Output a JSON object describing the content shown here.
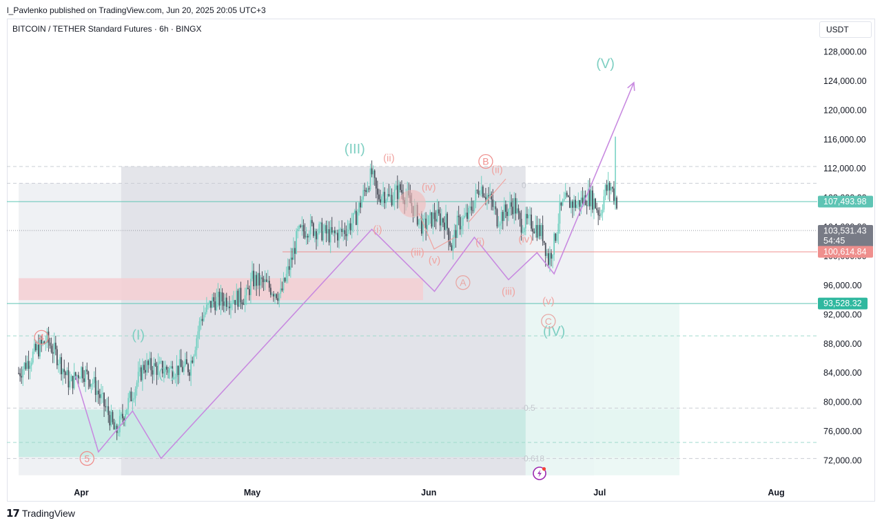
{
  "header": {
    "publish_line": "l_Pavlenko published on TradingView.com, Jun 20, 2025 20:05 UTC+3"
  },
  "chart_header": {
    "symbol": "BITCOIN / TETHER Standard Futures · 6h · BINGX",
    "currency": "USDT"
  },
  "footer": {
    "brand": "TradingView"
  },
  "colors": {
    "up": "#26a69a",
    "down": "#ef5350",
    "candles": "#6fd0c0",
    "wave_main": "#7ecfc2",
    "wave_sub": "#f0a3a0",
    "projection": "#c88ae0",
    "last_price_bg": "#5ec4b4",
    "pivot_bg": "#ef8f8d",
    "countdown_bg": "#787b86",
    "support_bg": "#2fb89f"
  },
  "chart_data": {
    "type": "candlestick",
    "x_axis": {
      "tick_labels": [
        "Apr",
        "May",
        "Jun",
        "Jul",
        "Aug"
      ]
    },
    "y_axis": {
      "range": [
        70000,
        131000
      ],
      "tick_labels": [
        "128,000.00",
        "124,000.00",
        "120,000.00",
        "116,000.00",
        "112,000.00",
        "108,000.00",
        "104,000.00",
        "100,000.00",
        "96,000.00",
        "92,000.00",
        "88,000.00",
        "84,000.00",
        "80,000.00",
        "76,000.00",
        "72,000.00"
      ],
      "tick_values": [
        128000,
        124000,
        120000,
        116000,
        112000,
        108000,
        104000,
        100000,
        96000,
        92000,
        88000,
        84000,
        80000,
        76000,
        72000
      ]
    },
    "price_labels": [
      {
        "name": "last-price",
        "value": 107493.98,
        "text": "107,493.98",
        "style": "last"
      },
      {
        "name": "current-price",
        "value": 103531.43,
        "text": "103,531.43",
        "sub": "54:45",
        "style": "countdown"
      },
      {
        "name": "pivot-line",
        "value": 100614.84,
        "text": "100,614.84",
        "style": "pivot"
      },
      {
        "name": "support-line",
        "value": 93528.32,
        "text": "93,528.32",
        "style": "support"
      }
    ],
    "fib_labels": [
      {
        "text": "0.5",
        "price": 79200
      },
      {
        "text": "0.618",
        "price": 72300
      },
      {
        "text": "0",
        "price": 109700
      }
    ],
    "zones": [
      {
        "name": "upper-gray-box",
        "x": [
          "2025-03-21",
          "2025-06-30"
        ],
        "price": [
          110000,
          70000
        ],
        "color": "#eceef2"
      },
      {
        "name": "darker-gray-box",
        "x": [
          "2025-04-08",
          "2025-06-18"
        ],
        "price": [
          112300,
          70000
        ],
        "color": "#dfe1e6"
      },
      {
        "name": "supply-zone",
        "x": [
          "2025-03-21",
          "2025-05-31"
        ],
        "price": [
          97000,
          94000
        ],
        "color": "#f5cfd2"
      },
      {
        "name": "teal-demand-zone",
        "x": [
          "2025-03-21",
          "2025-07-15"
        ],
        "price": [
          79000,
          72500
        ],
        "color": "#c4ebe3"
      },
      {
        "name": "light-teal-zone",
        "x": [
          "2025-06-18",
          "2025-07-15"
        ],
        "price": [
          93528,
          70000
        ],
        "color": "#e9f7f3"
      }
    ],
    "wave_labels": [
      {
        "text": "(III)",
        "date": "2025-05-19",
        "price": 114100,
        "style": "main"
      },
      {
        "text": "(I)",
        "date": "2025-04-11",
        "price": 88600,
        "style": "main"
      },
      {
        "text": "(II)",
        "date": "2025-04-16",
        "price": 83300,
        "style": "main"
      },
      {
        "text": "(IV)",
        "date": "2025-06-23",
        "price": 89100,
        "style": "main"
      },
      {
        "text": "(V)",
        "date": "2025-07-02",
        "price": 125800,
        "style": "main"
      },
      {
        "text": "(ii)",
        "date": "2025-05-25",
        "price": 113000,
        "style": "sub"
      },
      {
        "text": "(i)",
        "date": "2025-05-23",
        "price": 103200,
        "style": "sub"
      },
      {
        "text": "(iv)",
        "date": "2025-06-01",
        "price": 109000,
        "style": "sub"
      },
      {
        "text": "(iii)",
        "date": "2025-05-30",
        "price": 100100,
        "style": "sub"
      },
      {
        "text": "(v)",
        "date": "2025-06-02",
        "price": 99000,
        "style": "sub"
      },
      {
        "text": "(ii)",
        "date": "2025-06-13",
        "price": 111400,
        "style": "sub"
      },
      {
        "text": "(i)",
        "date": "2025-06-10",
        "price": 101500,
        "style": "sub"
      },
      {
        "text": "(iv)",
        "date": "2025-06-18",
        "price": 101900,
        "style": "sub"
      },
      {
        "text": "(iii)",
        "date": "2025-06-15",
        "price": 94700,
        "style": "sub"
      },
      {
        "text": "(v)",
        "date": "2025-06-22",
        "price": 93400,
        "style": "sub"
      }
    ],
    "circled_labels": [
      {
        "text": "4",
        "date": "2025-03-25",
        "price": 88900
      },
      {
        "text": "5",
        "date": "2025-04-02",
        "price": 72300
      },
      {
        "text": "A",
        "date": "2025-06-07",
        "price": 96400
      },
      {
        "text": "B",
        "date": "2025-06-11",
        "price": 113000
      },
      {
        "text": "C",
        "date": "2025-06-22",
        "price": 91100
      }
    ],
    "projection_path": [
      {
        "date": "2025-03-31",
        "price": 83600
      },
      {
        "date": "2025-04-04",
        "price": 73200
      },
      {
        "date": "2025-04-10",
        "price": 78800
      },
      {
        "date": "2025-04-15",
        "price": 72300
      },
      {
        "date": "2025-05-22",
        "price": 103700
      },
      {
        "date": "2025-06-02",
        "price": 95200
      },
      {
        "date": "2025-06-09",
        "price": 102600
      },
      {
        "date": "2025-06-15",
        "price": 96800
      },
      {
        "date": "2025-06-20",
        "price": 100500
      },
      {
        "date": "2025-06-23",
        "price": 97600
      },
      {
        "date": "2025-07-07",
        "price": 123800
      }
    ],
    "price_path": [
      {
        "date": "2025-03-21",
        "price": 84000
      },
      {
        "date": "2025-03-24",
        "price": 87000
      },
      {
        "date": "2025-03-26",
        "price": 88500
      },
      {
        "date": "2025-03-28",
        "price": 86000
      },
      {
        "date": "2025-03-30",
        "price": 82500
      },
      {
        "date": "2025-04-01",
        "price": 84500
      },
      {
        "date": "2025-04-03",
        "price": 82800
      },
      {
        "date": "2025-04-06",
        "price": 78000
      },
      {
        "date": "2025-04-07",
        "price": 75600
      },
      {
        "date": "2025-04-09",
        "price": 79500
      },
      {
        "date": "2025-04-12",
        "price": 85000
      },
      {
        "date": "2025-04-14",
        "price": 84700
      },
      {
        "date": "2025-04-17",
        "price": 84500
      },
      {
        "date": "2025-04-20",
        "price": 84800
      },
      {
        "date": "2025-04-22",
        "price": 91500
      },
      {
        "date": "2025-04-24",
        "price": 93800
      },
      {
        "date": "2025-04-27",
        "price": 94200
      },
      {
        "date": "2025-04-30",
        "price": 94500
      },
      {
        "date": "2025-05-01",
        "price": 96800
      },
      {
        "date": "2025-05-03",
        "price": 96300
      },
      {
        "date": "2025-05-06",
        "price": 94700
      },
      {
        "date": "2025-05-08",
        "price": 99800
      },
      {
        "date": "2025-05-09",
        "price": 103000
      },
      {
        "date": "2025-05-11",
        "price": 104000
      },
      {
        "date": "2025-05-13",
        "price": 103400
      },
      {
        "date": "2025-05-15",
        "price": 102800
      },
      {
        "date": "2025-05-17",
        "price": 103400
      },
      {
        "date": "2025-05-19",
        "price": 105000
      },
      {
        "date": "2025-05-21",
        "price": 109500
      },
      {
        "date": "2025-05-22",
        "price": 111300
      },
      {
        "date": "2025-05-23",
        "price": 108000
      },
      {
        "date": "2025-05-24",
        "price": 108800
      },
      {
        "date": "2025-05-25",
        "price": 107900
      },
      {
        "date": "2025-05-27",
        "price": 109200
      },
      {
        "date": "2025-05-29",
        "price": 107000
      },
      {
        "date": "2025-05-31",
        "price": 103900
      },
      {
        "date": "2025-06-02",
        "price": 105500
      },
      {
        "date": "2025-06-04",
        "price": 104800
      },
      {
        "date": "2025-06-05",
        "price": 101300
      },
      {
        "date": "2025-06-06",
        "price": 104300
      },
      {
        "date": "2025-06-08",
        "price": 105600
      },
      {
        "date": "2025-06-10",
        "price": 109800
      },
      {
        "date": "2025-06-12",
        "price": 107400
      },
      {
        "date": "2025-06-13",
        "price": 105200
      },
      {
        "date": "2025-06-14",
        "price": 105800
      },
      {
        "date": "2025-06-16",
        "price": 107200
      },
      {
        "date": "2025-06-17",
        "price": 104500
      },
      {
        "date": "2025-06-19",
        "price": 104600
      },
      {
        "date": "2025-06-21",
        "price": 103000
      },
      {
        "date": "2025-06-22",
        "price": 99500
      },
      {
        "date": "2025-06-23",
        "price": 101900
      },
      {
        "date": "2025-06-24",
        "price": 106100
      },
      {
        "date": "2025-06-25",
        "price": 107500
      },
      {
        "date": "2025-06-27",
        "price": 107100
      },
      {
        "date": "2025-06-29",
        "price": 108300
      },
      {
        "date": "2025-06-30",
        "price": 107500
      },
      {
        "date": "2025-07-01",
        "price": 105800
      },
      {
        "date": "2025-07-02",
        "price": 109000
      },
      {
        "date": "2025-07-03",
        "price": 109500
      },
      {
        "date": "2025-07-04",
        "price": 107500
      }
    ]
  }
}
